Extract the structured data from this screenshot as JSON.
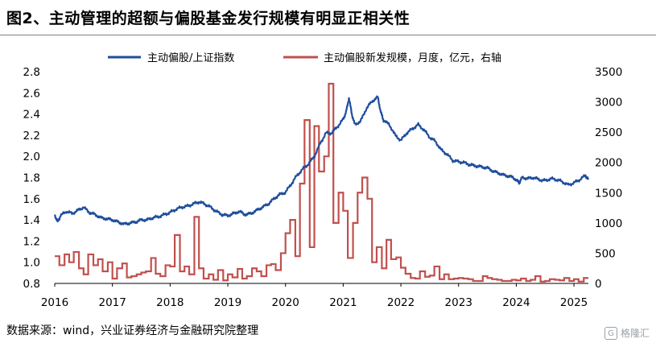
{
  "title": "图2、主动管理的超额与偏股基金发行规模有明显正相关性",
  "source": "数据来源：wind，兴业证券经济与金融研究院整理",
  "watermark": "格隆汇",
  "colors": {
    "blue_series": "#1f4e9c",
    "red_series": "#c0504d",
    "rule": "#7f7f7f"
  },
  "chart_data": {
    "type": "line",
    "legend_placement": "top",
    "grid": false,
    "xlim": [
      2016.0,
      2025.25
    ],
    "x_ticks": [
      2016,
      2017,
      2018,
      2019,
      2020,
      2021,
      2022,
      2023,
      2024,
      2025
    ],
    "x_tick_labels": [
      "2016",
      "2017",
      "2018",
      "2019",
      "2020",
      "2021",
      "2022",
      "2023",
      "2024",
      "2025"
    ],
    "y_left": {
      "lim": [
        0.8,
        2.8
      ],
      "ticks": [
        0.8,
        1.0,
        1.2,
        1.4,
        1.6,
        1.8,
        2.0,
        2.2,
        2.4,
        2.6,
        2.8
      ],
      "tick_labels": [
        "0.8",
        "1.0",
        "1.2",
        "1.4",
        "1.6",
        "1.8",
        "2.0",
        "2.2",
        "2.4",
        "2.6",
        "2.8"
      ]
    },
    "y_right": {
      "lim": [
        0,
        3500
      ],
      "ticks": [
        0,
        500,
        1000,
        1500,
        2000,
        2500,
        3000,
        3500
      ],
      "tick_labels": [
        "0",
        "500",
        "1000",
        "1500",
        "2000",
        "2500",
        "3000",
        "3500"
      ]
    },
    "series": [
      {
        "name": "主动偏股/上证指数",
        "axis": "left",
        "style": "line",
        "x": [
          2016.0,
          2016.05,
          2016.1,
          2016.2,
          2016.3,
          2016.4,
          2016.5,
          2016.6,
          2016.7,
          2016.8,
          2016.9,
          2017.0,
          2017.1,
          2017.2,
          2017.3,
          2017.4,
          2017.5,
          2017.6,
          2017.7,
          2017.8,
          2017.9,
          2018.0,
          2018.1,
          2018.2,
          2018.3,
          2018.4,
          2018.5,
          2018.6,
          2018.7,
          2018.8,
          2018.9,
          2019.0,
          2019.1,
          2019.2,
          2019.3,
          2019.4,
          2019.5,
          2019.6,
          2019.7,
          2019.8,
          2019.9,
          2020.0,
          2020.1,
          2020.2,
          2020.3,
          2020.4,
          2020.5,
          2020.6,
          2020.7,
          2020.8,
          2020.9,
          2021.0,
          2021.05,
          2021.1,
          2021.15,
          2021.2,
          2021.3,
          2021.4,
          2021.5,
          2021.6,
          2021.65,
          2021.7,
          2021.8,
          2021.9,
          2022.0,
          2022.1,
          2022.2,
          2022.3,
          2022.4,
          2022.5,
          2022.6,
          2022.7,
          2022.8,
          2022.9,
          2023.0,
          2023.1,
          2023.2,
          2023.3,
          2023.4,
          2023.5,
          2023.6,
          2023.7,
          2023.8,
          2023.9,
          2024.0,
          2024.05,
          2024.1,
          2024.2,
          2024.3,
          2024.4,
          2024.5,
          2024.6,
          2024.7,
          2024.8,
          2024.9,
          2025.0,
          2025.1,
          2025.2,
          2025.25
        ],
        "y": [
          1.45,
          1.38,
          1.44,
          1.48,
          1.46,
          1.49,
          1.52,
          1.47,
          1.45,
          1.42,
          1.41,
          1.4,
          1.38,
          1.36,
          1.37,
          1.38,
          1.4,
          1.4,
          1.42,
          1.43,
          1.45,
          1.47,
          1.5,
          1.52,
          1.53,
          1.55,
          1.57,
          1.55,
          1.52,
          1.48,
          1.45,
          1.44,
          1.46,
          1.48,
          1.45,
          1.46,
          1.49,
          1.52,
          1.55,
          1.6,
          1.64,
          1.66,
          1.74,
          1.82,
          1.88,
          1.93,
          2.0,
          2.12,
          2.22,
          2.22,
          2.28,
          2.35,
          2.42,
          2.55,
          2.4,
          2.3,
          2.33,
          2.45,
          2.52,
          2.56,
          2.42,
          2.34,
          2.3,
          2.2,
          2.15,
          2.22,
          2.26,
          2.3,
          2.25,
          2.18,
          2.14,
          2.06,
          2.02,
          1.96,
          1.95,
          1.94,
          1.92,
          1.91,
          1.9,
          1.89,
          1.86,
          1.84,
          1.82,
          1.81,
          1.78,
          1.75,
          1.8,
          1.79,
          1.8,
          1.78,
          1.77,
          1.79,
          1.78,
          1.76,
          1.73,
          1.75,
          1.78,
          1.82,
          1.78
        ]
      },
      {
        "name": "主动偏股新发规模，月度，亿元，右轴",
        "axis": "right",
        "style": "step",
        "x": [
          2016.0,
          2016.08,
          2016.17,
          2016.25,
          2016.33,
          2016.42,
          2016.5,
          2016.58,
          2016.67,
          2016.75,
          2016.83,
          2016.92,
          2017.0,
          2017.08,
          2017.17,
          2017.25,
          2017.33,
          2017.42,
          2017.5,
          2017.58,
          2017.67,
          2017.75,
          2017.83,
          2017.92,
          2018.0,
          2018.08,
          2018.17,
          2018.25,
          2018.33,
          2018.42,
          2018.5,
          2018.58,
          2018.67,
          2018.75,
          2018.83,
          2018.92,
          2019.0,
          2019.08,
          2019.17,
          2019.25,
          2019.33,
          2019.42,
          2019.5,
          2019.58,
          2019.67,
          2019.75,
          2019.83,
          2019.92,
          2020.0,
          2020.08,
          2020.17,
          2020.25,
          2020.33,
          2020.42,
          2020.5,
          2020.58,
          2020.67,
          2020.75,
          2020.83,
          2020.92,
          2021.0,
          2021.08,
          2021.17,
          2021.25,
          2021.33,
          2021.42,
          2021.5,
          2021.58,
          2021.67,
          2021.75,
          2021.83,
          2021.92,
          2022.0,
          2022.08,
          2022.17,
          2022.25,
          2022.33,
          2022.42,
          2022.5,
          2022.58,
          2022.67,
          2022.75,
          2022.83,
          2022.92,
          2023.0,
          2023.08,
          2023.17,
          2023.25,
          2023.33,
          2023.42,
          2023.5,
          2023.58,
          2023.67,
          2023.75,
          2023.83,
          2023.92,
          2024.0,
          2024.08,
          2024.17,
          2024.25,
          2024.33,
          2024.42,
          2024.5,
          2024.58,
          2024.67,
          2024.75,
          2024.83,
          2024.92,
          2025.0,
          2025.08,
          2025.17,
          2025.25
        ],
        "y": [
          450,
          300,
          480,
          350,
          520,
          250,
          150,
          480,
          300,
          400,
          200,
          350,
          80,
          250,
          330,
          100,
          120,
          150,
          180,
          200,
          420,
          160,
          120,
          300,
          280,
          800,
          200,
          280,
          150,
          1100,
          250,
          80,
          150,
          60,
          220,
          50,
          150,
          100,
          240,
          80,
          120,
          250,
          200,
          120,
          300,
          320,
          220,
          500,
          830,
          1050,
          450,
          1650,
          2700,
          600,
          2600,
          1850,
          2100,
          3300,
          1000,
          1500,
          1200,
          420,
          1000,
          1500,
          1750,
          1400,
          350,
          600,
          250,
          720,
          400,
          430,
          260,
          160,
          90,
          80,
          200,
          110,
          130,
          280,
          70,
          150,
          70,
          80,
          90,
          80,
          70,
          40,
          40,
          120,
          90,
          70,
          60,
          40,
          40,
          60,
          50,
          80,
          40,
          60,
          120,
          30,
          40,
          70,
          60,
          50,
          90,
          40,
          70,
          30,
          90,
          90
        ]
      }
    ]
  }
}
